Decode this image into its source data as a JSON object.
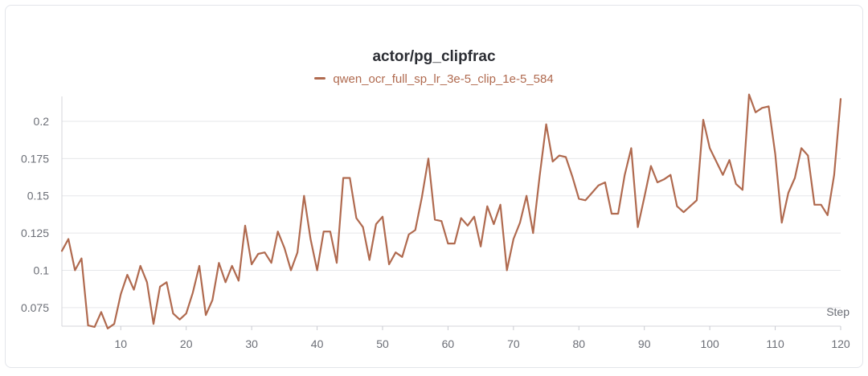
{
  "chart_data": {
    "type": "line",
    "title": "actor/pg_clipfrac",
    "xlabel": "Step",
    "ylabel": "",
    "xlim": [
      1,
      120
    ],
    "ylim": [
      0.0625,
      0.2167
    ],
    "x_ticks": [
      10,
      20,
      30,
      40,
      50,
      60,
      70,
      80,
      90,
      100,
      110,
      120
    ],
    "y_ticks": [
      0.075,
      0.1,
      0.125,
      0.15,
      0.175,
      0.2
    ],
    "y_tick_labels": [
      "0.075",
      "0.1",
      "0.125",
      "0.15",
      "0.175",
      "0.2"
    ],
    "grid": true,
    "legend_position": "top-center",
    "series": [
      {
        "name": "qwen_ocr_full_sp_lr_3e-5_clip_1e-5_584",
        "color": "#b06a4f",
        "x": [
          1,
          2,
          3,
          4,
          5,
          6,
          7,
          8,
          9,
          10,
          11,
          12,
          13,
          14,
          15,
          16,
          17,
          18,
          19,
          20,
          21,
          22,
          23,
          24,
          25,
          26,
          27,
          28,
          29,
          30,
          31,
          32,
          33,
          34,
          35,
          36,
          37,
          38,
          39,
          40,
          41,
          42,
          43,
          44,
          45,
          46,
          47,
          48,
          49,
          50,
          51,
          52,
          53,
          54,
          55,
          56,
          57,
          58,
          59,
          60,
          61,
          62,
          63,
          64,
          65,
          66,
          67,
          68,
          69,
          70,
          71,
          72,
          73,
          74,
          75,
          76,
          77,
          78,
          79,
          80,
          81,
          82,
          83,
          84,
          85,
          86,
          87,
          88,
          89,
          90,
          91,
          92,
          93,
          94,
          95,
          96,
          97,
          98,
          99,
          100,
          101,
          102,
          103,
          104,
          105,
          106,
          107,
          108,
          109,
          110,
          111,
          112,
          113,
          114,
          115,
          116,
          117,
          118,
          119,
          120
        ],
        "values": [
          0.113,
          0.121,
          0.1,
          0.108,
          0.063,
          0.062,
          0.072,
          0.061,
          0.064,
          0.084,
          0.097,
          0.087,
          0.103,
          0.092,
          0.064,
          0.089,
          0.092,
          0.071,
          0.067,
          0.071,
          0.085,
          0.103,
          0.07,
          0.08,
          0.105,
          0.092,
          0.103,
          0.093,
          0.13,
          0.104,
          0.111,
          0.112,
          0.105,
          0.126,
          0.115,
          0.1,
          0.112,
          0.15,
          0.121,
          0.1,
          0.126,
          0.126,
          0.105,
          0.162,
          0.162,
          0.135,
          0.129,
          0.107,
          0.131,
          0.136,
          0.104,
          0.112,
          0.109,
          0.124,
          0.127,
          0.149,
          0.175,
          0.134,
          0.133,
          0.118,
          0.118,
          0.135,
          0.13,
          0.136,
          0.116,
          0.143,
          0.131,
          0.144,
          0.1,
          0.121,
          0.132,
          0.15,
          0.125,
          0.163,
          0.198,
          0.173,
          0.177,
          0.176,
          0.163,
          0.148,
          0.147,
          0.152,
          0.157,
          0.159,
          0.138,
          0.138,
          0.164,
          0.182,
          0.129,
          0.149,
          0.17,
          0.159,
          0.161,
          0.164,
          0.143,
          0.139,
          0.143,
          0.147,
          0.201,
          0.182,
          0.173,
          0.164,
          0.174,
          0.158,
          0.154,
          0.218,
          0.206,
          0.209,
          0.21,
          0.178,
          0.132,
          0.152,
          0.162,
          0.182,
          0.177,
          0.144,
          0.144,
          0.137,
          0.164,
          0.215
        ]
      }
    ]
  }
}
